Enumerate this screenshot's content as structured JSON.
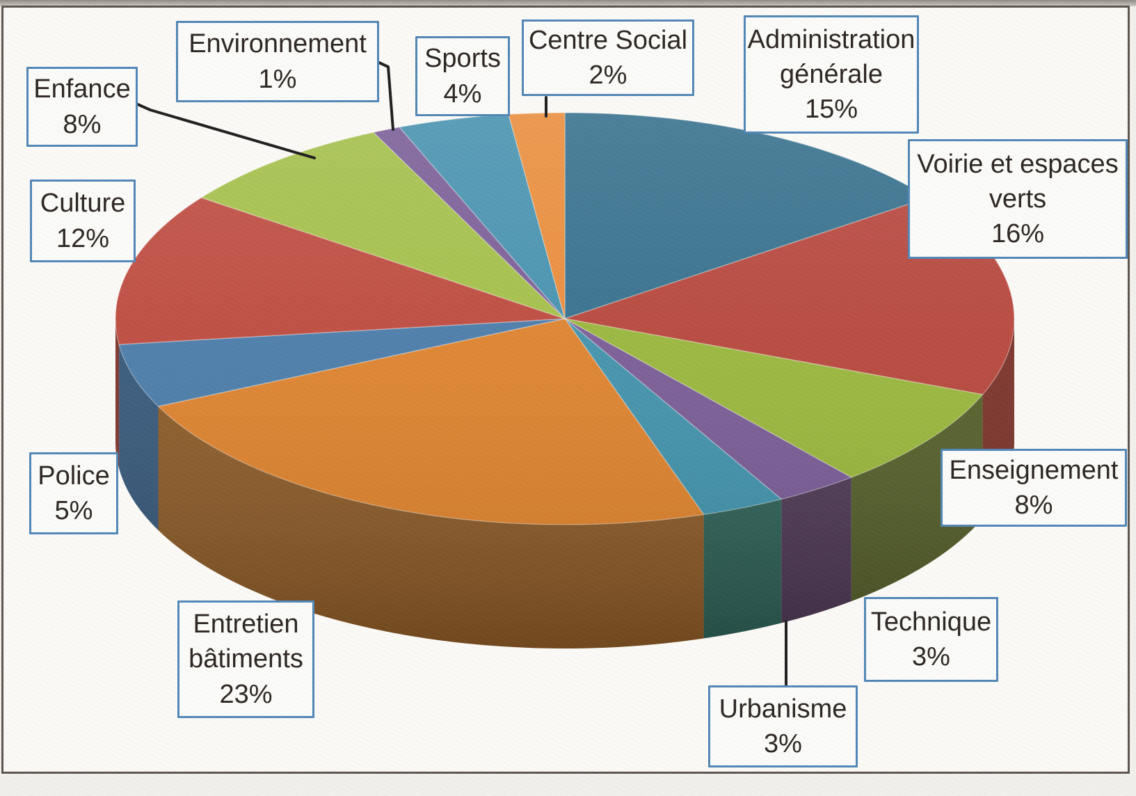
{
  "chart_data": {
    "type": "pie",
    "style": "3d",
    "title": "",
    "unit": "%",
    "start_angle_deg": 0,
    "direction": "clockwise",
    "legend_position": "callout-labels",
    "slices": [
      {
        "label": "Administration générale",
        "value": 15,
        "label_lines": [
          "Administration",
          "générale",
          "15%"
        ],
        "color": "#35708e",
        "side_color": "#1e4a60"
      },
      {
        "label": "Voirie et espaces verts",
        "value": 16,
        "label_lines": [
          "Voirie et espaces",
          "verts",
          "16%"
        ],
        "color": "#b8473d",
        "side_color": "#762b21"
      },
      {
        "label": "Enseignement",
        "value": 8,
        "label_lines": [
          "Enseignement",
          "8%"
        ],
        "color": "#9ab83d",
        "side_color": "#4f5a22"
      },
      {
        "label": "Technique",
        "value": 3,
        "label_lines": [
          "Technique",
          "3%"
        ],
        "color": "#7a5d98",
        "side_color": "#483250"
      },
      {
        "label": "Urbanisme",
        "value": 3,
        "label_lines": [
          "Urbanisme",
          "3%"
        ],
        "color": "#4394ad",
        "side_color": "#265c52"
      },
      {
        "label": "Entretien bâtiments",
        "value": 23,
        "label_lines": [
          "Entretien",
          "bâtiments",
          "23%"
        ],
        "color": "#df8430",
        "side_color": "#8a5620"
      },
      {
        "label": "Police",
        "value": 5,
        "label_lines": [
          "Police",
          "5%"
        ],
        "color": "#4b7dab",
        "side_color": "#2f5377"
      },
      {
        "label": "Culture",
        "value": 12,
        "label_lines": [
          "Culture",
          "12%"
        ],
        "color": "#bf4b40",
        "side_color": "#7a2e24"
      },
      {
        "label": "Enfance",
        "value": 8,
        "label_lines": [
          "Enfance",
          "8%"
        ],
        "color": "#a4c14a",
        "side_color": "#55601f"
      },
      {
        "label": "Environnement",
        "value": 1,
        "label_lines": [
          "Environnement",
          "1%"
        ],
        "color": "#7b5e99",
        "side_color": "#483250"
      },
      {
        "label": "Sports",
        "value": 4,
        "label_lines": [
          "Sports",
          "4%"
        ],
        "color": "#4793b1",
        "side_color": "#265c66"
      },
      {
        "label": "Centre Social",
        "value": 2,
        "label_lines": [
          "Centre Social",
          "2%"
        ],
        "color": "#ec8e3c",
        "side_color": "#9a5a1e"
      }
    ],
    "colors": {
      "label_box_border": "#4f86b8",
      "label_box_background": "#fdfdfb",
      "label_text": "#29231f",
      "leader_line": "#1c1c1c",
      "page_frame": "#5a534c",
      "chart_background": "#fdfcf9"
    }
  }
}
